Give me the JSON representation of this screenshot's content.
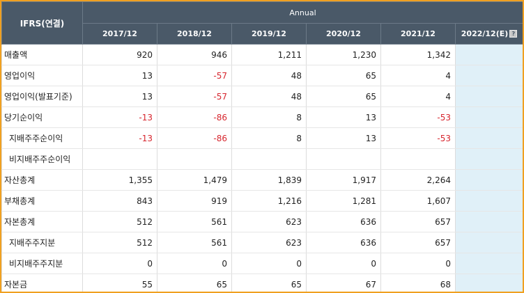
{
  "header": {
    "ifrs_label": "IFRS(연결)",
    "annual_label": "Annual",
    "years": [
      "2017/12",
      "2018/12",
      "2019/12",
      "2020/12",
      "2021/12"
    ],
    "estimate_label": "2022/12(E)",
    "help_icon": "?"
  },
  "rows": [
    {
      "label": "매출액",
      "indent": false,
      "values": [
        "920",
        "946",
        "1,211",
        "1,230",
        "1,342"
      ],
      "estimate": ""
    },
    {
      "label": "영업이익",
      "indent": false,
      "values": [
        "13",
        "-57",
        "48",
        "65",
        "4"
      ],
      "estimate": ""
    },
    {
      "label": "영업이익(발표기준)",
      "indent": false,
      "values": [
        "13",
        "-57",
        "48",
        "65",
        "4"
      ],
      "estimate": ""
    },
    {
      "label": "당기순이익",
      "indent": false,
      "values": [
        "-13",
        "-86",
        "8",
        "13",
        "-53"
      ],
      "estimate": ""
    },
    {
      "label": "지배주주순이익",
      "indent": true,
      "values": [
        "-13",
        "-86",
        "8",
        "13",
        "-53"
      ],
      "estimate": ""
    },
    {
      "label": "비지배주주순이익",
      "indent": true,
      "values": [
        "",
        "",
        "",
        "",
        ""
      ],
      "estimate": ""
    },
    {
      "label": "자산총계",
      "indent": false,
      "values": [
        "1,355",
        "1,479",
        "1,839",
        "1,917",
        "2,264"
      ],
      "estimate": ""
    },
    {
      "label": "부채총계",
      "indent": false,
      "values": [
        "843",
        "919",
        "1,216",
        "1,281",
        "1,607"
      ],
      "estimate": ""
    },
    {
      "label": "자본총계",
      "indent": false,
      "values": [
        "512",
        "561",
        "623",
        "636",
        "657"
      ],
      "estimate": ""
    },
    {
      "label": "지배주주지분",
      "indent": true,
      "values": [
        "512",
        "561",
        "623",
        "636",
        "657"
      ],
      "estimate": ""
    },
    {
      "label": "비지배주주지분",
      "indent": true,
      "values": [
        "0",
        "0",
        "0",
        "0",
        "0"
      ],
      "estimate": ""
    },
    {
      "label": "자본금",
      "indent": false,
      "values": [
        "55",
        "65",
        "65",
        "67",
        "68"
      ],
      "estimate": ""
    }
  ],
  "colors": {
    "header_bg": "#4a5968",
    "negative": "#d7262e",
    "estimate_bg": "#e0f0f8",
    "frame_border": "#f0a020"
  }
}
